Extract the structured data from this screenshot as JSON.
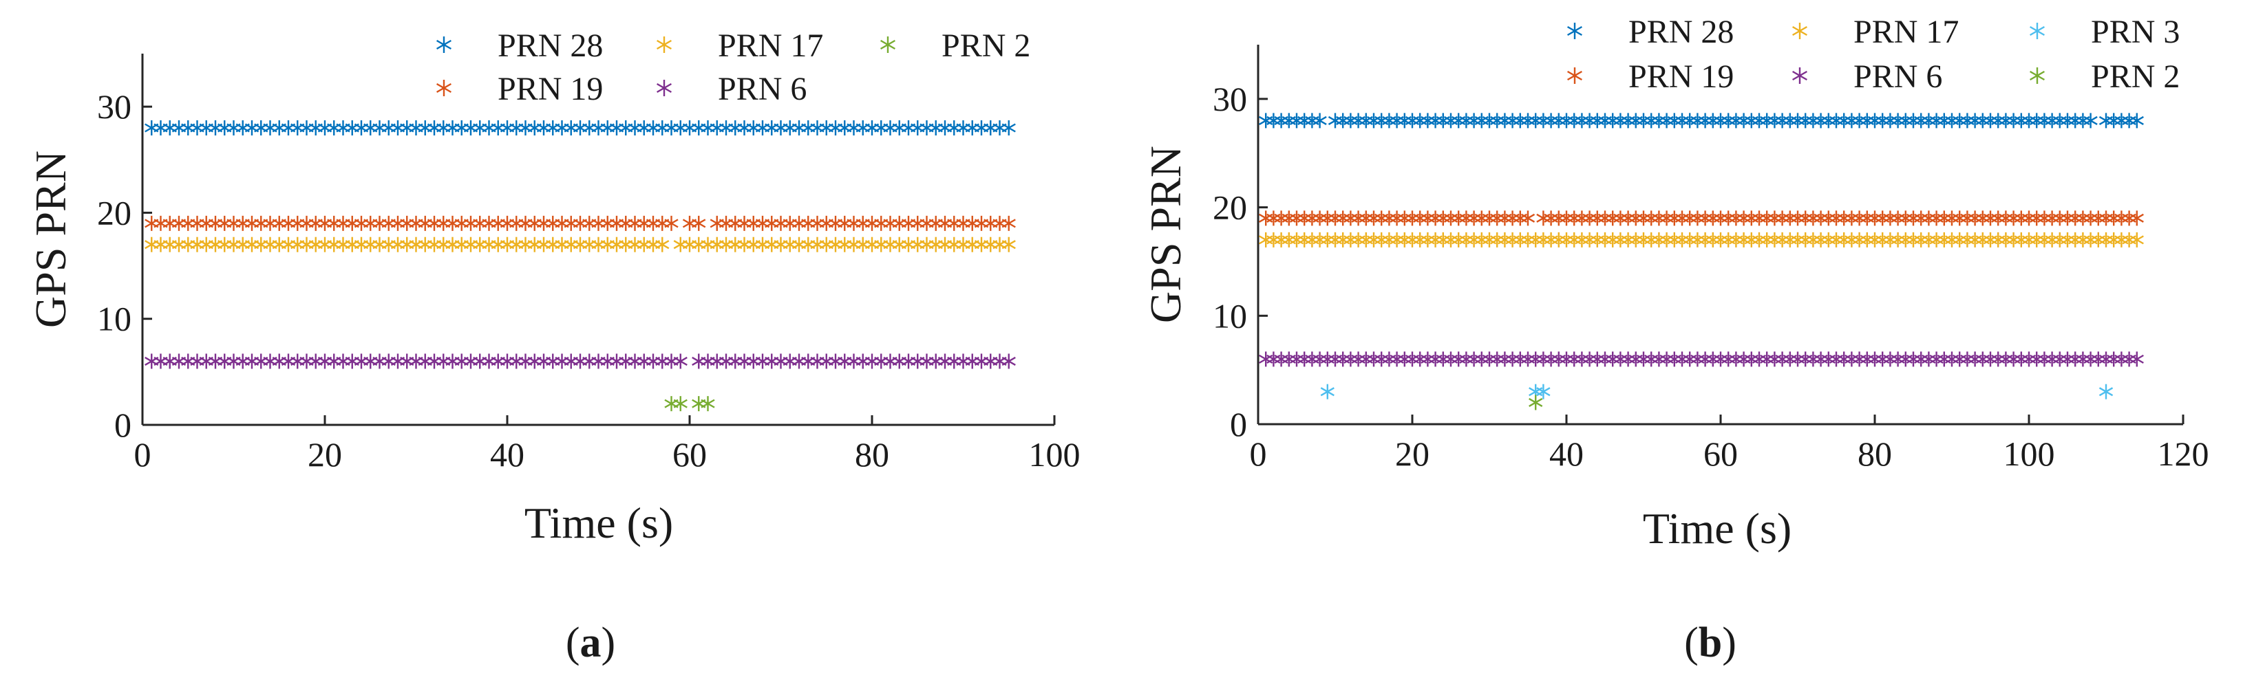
{
  "chart_data": [
    {
      "id": "a",
      "type": "scatter",
      "panel_label": "a",
      "xlabel": "Time (s)",
      "ylabel": "GPS PRN",
      "xlim": [
        0,
        100
      ],
      "ylim": [
        0,
        35
      ],
      "xticks": [
        0,
        20,
        40,
        60,
        80,
        100
      ],
      "yticks": [
        0,
        10,
        20,
        30
      ],
      "legend_location": "top-right",
      "marker": "asterisk",
      "step": 1,
      "series": [
        {
          "name": "PRN 28",
          "prn": 28,
          "color": "#0072BD",
          "start": 1,
          "end": 95,
          "gaps": []
        },
        {
          "name": "PRN 19",
          "prn": 19,
          "color": "#D95319",
          "start": 1,
          "end": 95,
          "gaps": [
            59,
            62
          ]
        },
        {
          "name": "PRN 17",
          "prn": 17,
          "color": "#EDB120",
          "start": 1,
          "end": 95,
          "gaps": [
            58
          ]
        },
        {
          "name": "PRN 6",
          "prn": 6,
          "color": "#7E2F8E",
          "start": 1,
          "end": 95,
          "gaps": [
            60
          ]
        },
        {
          "name": "PRN 2",
          "prn": 2,
          "color": "#77AC30",
          "points": [
            58,
            59,
            61,
            62
          ]
        }
      ],
      "legend_order": [
        "PRN 28",
        "PRN 17",
        "PRN 2",
        "PRN 19",
        "PRN 6"
      ]
    },
    {
      "id": "b",
      "type": "scatter",
      "panel_label": "b",
      "xlabel": "Time (s)",
      "ylabel": "GPS PRN",
      "xlim": [
        0,
        120
      ],
      "ylim": [
        0,
        35
      ],
      "xticks": [
        0,
        20,
        40,
        60,
        80,
        100,
        120
      ],
      "yticks": [
        0,
        10,
        20,
        30
      ],
      "legend_location": "top-right",
      "marker": "asterisk",
      "step": 1,
      "series": [
        {
          "name": "PRN 28",
          "prn": 28,
          "color": "#0072BD",
          "start": 1,
          "end": 114,
          "gaps": [
            9,
            109
          ]
        },
        {
          "name": "PRN 19",
          "prn": 19,
          "color": "#D95319",
          "start": 1,
          "end": 114,
          "gaps": [
            36
          ]
        },
        {
          "name": "PRN 17",
          "prn": 17,
          "color": "#EDB120",
          "start": 1,
          "end": 114,
          "gaps": []
        },
        {
          "name": "PRN 6",
          "prn": 6,
          "color": "#7E2F8E",
          "start": 1,
          "end": 114,
          "gaps": []
        },
        {
          "name": "PRN 3",
          "prn": 3,
          "color": "#4DBEEE",
          "points": [
            9,
            36,
            37,
            110
          ]
        },
        {
          "name": "PRN 2",
          "prn": 2,
          "color": "#77AC30",
          "points": [
            36
          ]
        }
      ],
      "legend_order": [
        "PRN 28",
        "PRN 17",
        "PRN 3",
        "PRN 19",
        "PRN 6",
        "PRN 2"
      ]
    }
  ]
}
